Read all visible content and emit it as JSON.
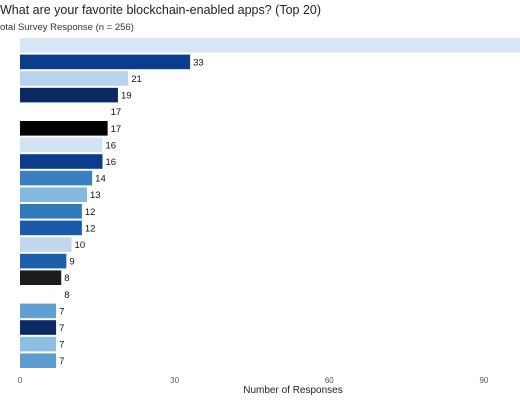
{
  "chart_data": {
    "type": "bar",
    "orientation": "horizontal",
    "title": "What are your favorite blockchain-enabled apps? (Top 20)",
    "subtitle": "otal Survey Response (n = 256)",
    "xlabel": "Number of Responses",
    "ylabel": "",
    "xlim": [
      0,
      97
    ],
    "xticks": [
      0,
      30,
      60,
      90
    ],
    "grid": false,
    "legend": "none",
    "categories": [
      "",
      "",
      "",
      "",
      "",
      "",
      "",
      "",
      "",
      "",
      "",
      "",
      "",
      "",
      "",
      "",
      "",
      "",
      "",
      ""
    ],
    "values": [
      97,
      33,
      21,
      19,
      17,
      17,
      16,
      16,
      14,
      13,
      12,
      12,
      10,
      9,
      8,
      8,
      7,
      7,
      7,
      7
    ],
    "data_labels": [
      "",
      "33",
      "21",
      "19",
      "17",
      "17",
      "16",
      "16",
      "14",
      "13",
      "12",
      "12",
      "10",
      "9",
      "8",
      "8",
      "7",
      "7",
      "7",
      "7"
    ],
    "colors": [
      "#d6e6f5",
      "#0a3d8c",
      "#b8d3ee",
      "#0c2a62",
      "#ffffff",
      "#000000",
      "#d3e3f4",
      "#0e3c8c",
      "#3a7fc0",
      "#84b9df",
      "#2f78bc",
      "#1a5aaa",
      "#c0d7ef",
      "#1d5fab",
      "#1c1c1c",
      "#ffffff",
      "#5f9fd1",
      "#0c2a62",
      "#8ebfe0",
      "#5c9ccf"
    ]
  }
}
